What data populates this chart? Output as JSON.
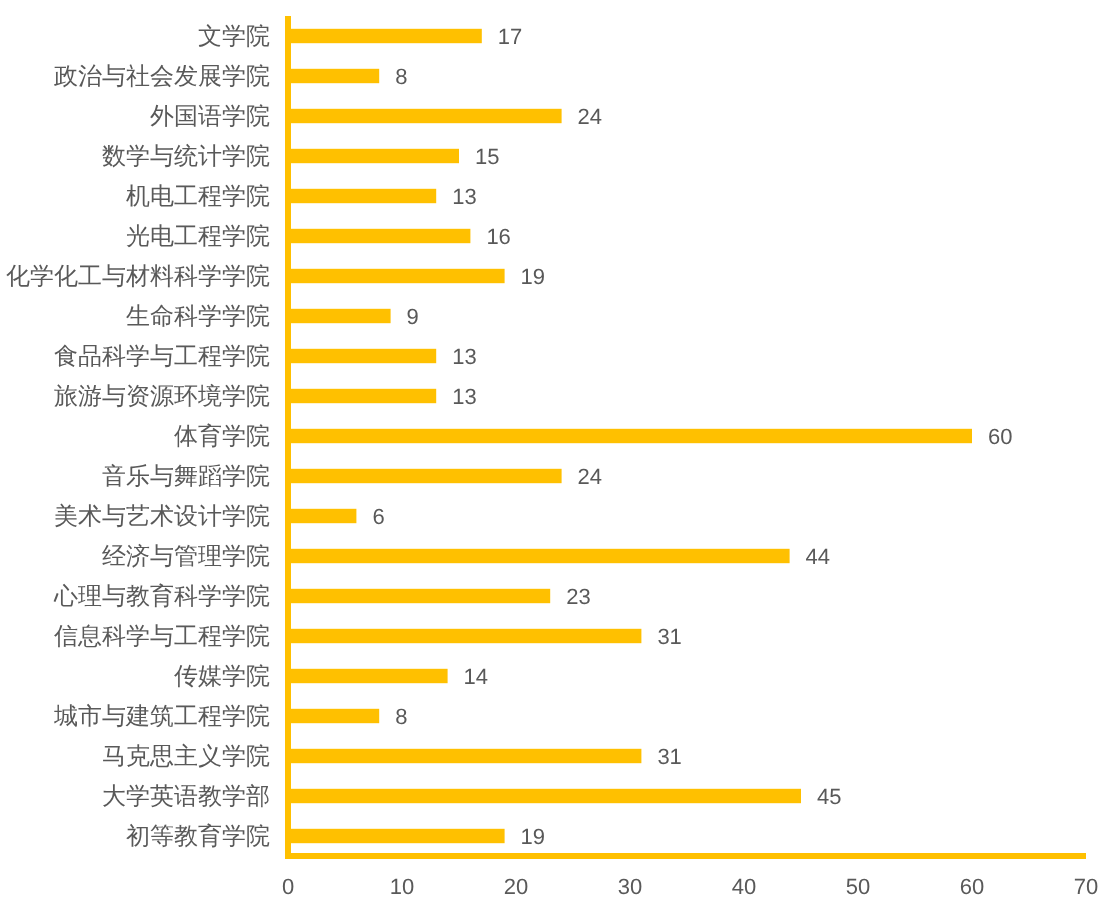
{
  "chart_data": {
    "type": "bar",
    "orientation": "horizontal",
    "categories": [
      "文学院",
      "政治与社会发展学院",
      "外国语学院",
      "数学与统计学院",
      "机电工程学院",
      "光电工程学院",
      "化学化工与材料科学学院",
      "生命科学学院",
      "食品科学与工程学院",
      "旅游与资源环境学院",
      "体育学院",
      "音乐与舞蹈学院",
      "美术与艺术设计学院",
      "经济与管理学院",
      "心理与教育科学学院",
      "信息科学与工程学院",
      "传媒学院",
      "城市与建筑工程学院",
      "马克思主义学院",
      "大学英语教学部",
      "初等教育学院"
    ],
    "values": [
      17,
      8,
      24,
      15,
      13,
      16,
      19,
      9,
      13,
      13,
      60,
      24,
      6,
      44,
      23,
      31,
      14,
      8,
      31,
      45,
      19
    ],
    "color": "#ffc000",
    "xlim": [
      0,
      70
    ],
    "xticks": [
      0,
      10,
      20,
      30,
      40,
      50,
      60,
      70
    ],
    "data_labels": true
  }
}
